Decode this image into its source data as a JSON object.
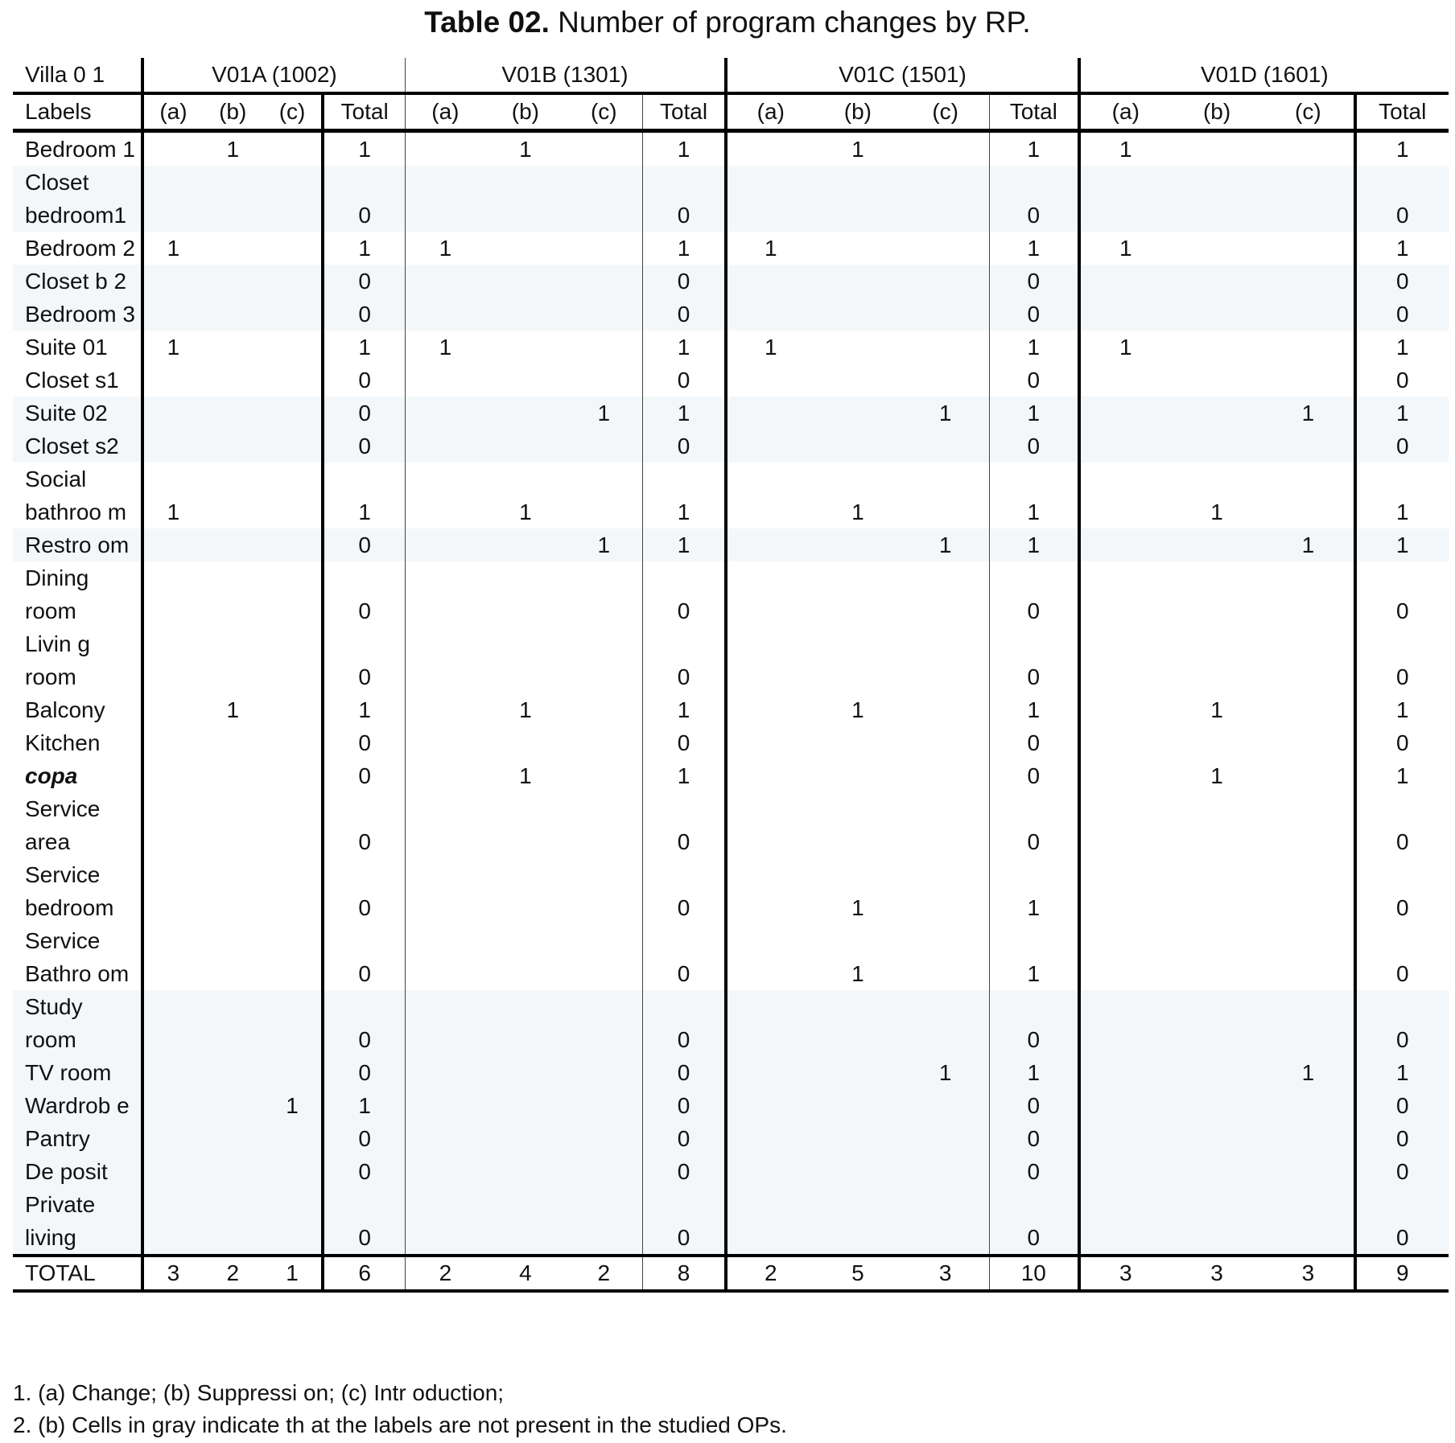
{
  "title": {
    "bold": "Table 02.",
    "rest": " Number of program changes by RP."
  },
  "header": {
    "corner": "Villa 0 1",
    "labels": "Labels",
    "groups": [
      "V01A (1002)",
      "V01B (1301)",
      "V01C (1501)",
      "V01D (1601)"
    ],
    "sub": [
      "(a)",
      "(b)",
      "(c)",
      "Total"
    ]
  },
  "rows": [
    {
      "label": "Bedroom 1",
      "shaded": false,
      "values": [
        "",
        "1",
        "",
        "1",
        "",
        "1",
        "",
        "1",
        "",
        "1",
        "",
        "1",
        "1",
        "",
        "",
        "1"
      ]
    },
    {
      "label": "Closet bedroom1",
      "shaded": true,
      "values": [
        "",
        "",
        "",
        "0",
        "",
        "",
        "",
        "0",
        "",
        "",
        "",
        "0",
        "",
        "",
        "",
        "0"
      ]
    },
    {
      "label": "Bedroom 2",
      "shaded": false,
      "values": [
        "1",
        "",
        "",
        "1",
        "1",
        "",
        "",
        "1",
        "1",
        "",
        "",
        "1",
        "1",
        "",
        "",
        "1"
      ]
    },
    {
      "label": "Closet b 2",
      "shaded": true,
      "values": [
        "",
        "",
        "",
        "0",
        "",
        "",
        "",
        "0",
        "",
        "",
        "",
        "0",
        "",
        "",
        "",
        "0"
      ]
    },
    {
      "label": "Bedroom 3",
      "shaded": true,
      "values": [
        "",
        "",
        "",
        "0",
        "",
        "",
        "",
        "0",
        "",
        "",
        "",
        "0",
        "",
        "",
        "",
        "0"
      ]
    },
    {
      "label": "Suite 01",
      "shaded": false,
      "values": [
        "1",
        "",
        "",
        "1",
        "1",
        "",
        "",
        "1",
        "1",
        "",
        "",
        "1",
        "1",
        "",
        "",
        "1"
      ]
    },
    {
      "label": "Closet s1",
      "shaded": false,
      "values": [
        "",
        "",
        "",
        "0",
        "",
        "",
        "",
        "0",
        "",
        "",
        "",
        "0",
        "",
        "",
        "",
        "0"
      ]
    },
    {
      "label": "Suite 02",
      "shaded": true,
      "values": [
        "",
        "",
        "",
        "0",
        "",
        "",
        "1",
        "1",
        "",
        "",
        "1",
        "1",
        "",
        "",
        "1",
        "1"
      ]
    },
    {
      "label": "Closet s2",
      "shaded": true,
      "values": [
        "",
        "",
        "",
        "0",
        "",
        "",
        "",
        "0",
        "",
        "",
        "",
        "0",
        "",
        "",
        "",
        "0"
      ]
    },
    {
      "label": "Social bathroo m",
      "shaded": false,
      "values": [
        "1",
        "",
        "",
        "1",
        "",
        "1",
        "",
        "1",
        "",
        "1",
        "",
        "1",
        "",
        "1",
        "",
        "1"
      ]
    },
    {
      "label": "Restro om",
      "shaded": true,
      "values": [
        "",
        "",
        "",
        "0",
        "",
        "",
        "1",
        "1",
        "",
        "",
        "1",
        "1",
        "",
        "",
        "1",
        "1"
      ]
    },
    {
      "label": "Dining room",
      "shaded": false,
      "values": [
        "",
        "",
        "",
        "0",
        "",
        "",
        "",
        "0",
        "",
        "",
        "",
        "0",
        "",
        "",
        "",
        "0"
      ]
    },
    {
      "label": "Livin g room",
      "shaded": false,
      "values": [
        "",
        "",
        "",
        "0",
        "",
        "",
        "",
        "0",
        "",
        "",
        "",
        "0",
        "",
        "",
        "",
        "0"
      ]
    },
    {
      "label": "Balcony",
      "shaded": false,
      "values": [
        "",
        "1",
        "",
        "1",
        "",
        "1",
        "",
        "1",
        "",
        "1",
        "",
        "1",
        "",
        "1",
        "",
        "1"
      ]
    },
    {
      "label": "Kitchen",
      "shaded": false,
      "values": [
        "",
        "",
        "",
        "0",
        "",
        "",
        "",
        "0",
        "",
        "",
        "",
        "0",
        "",
        "",
        "",
        "0"
      ]
    },
    {
      "label": "copa",
      "shaded": false,
      "italic": true,
      "values": [
        "",
        "",
        "",
        "0",
        "",
        "1",
        "",
        "1",
        "",
        "",
        "",
        "0",
        "",
        "1",
        "",
        "1"
      ]
    },
    {
      "label": "Service area",
      "shaded": false,
      "values": [
        "",
        "",
        "",
        "0",
        "",
        "",
        "",
        "0",
        "",
        "",
        "",
        "0",
        "",
        "",
        "",
        "0"
      ]
    },
    {
      "label": "Service bedroom",
      "shaded": false,
      "values": [
        "",
        "",
        "",
        "0",
        "",
        "",
        "",
        "0",
        "",
        "1",
        "",
        "1",
        "",
        "",
        "",
        "0"
      ]
    },
    {
      "label": "Service Bathro om",
      "shaded": false,
      "values": [
        "",
        "",
        "",
        "0",
        "",
        "",
        "",
        "0",
        "",
        "1",
        "",
        "1",
        "",
        "",
        "",
        "0"
      ]
    },
    {
      "label": "Study room",
      "shaded": true,
      "values": [
        "",
        "",
        "",
        "0",
        "",
        "",
        "",
        "0",
        "",
        "",
        "",
        "0",
        "",
        "",
        "",
        "0"
      ]
    },
    {
      "label": "TV room",
      "shaded": true,
      "values": [
        "",
        "",
        "",
        "0",
        "",
        "",
        "",
        "0",
        "",
        "",
        "1",
        "1",
        "",
        "",
        "1",
        "1"
      ]
    },
    {
      "label": "Wardrob e",
      "shaded": true,
      "values": [
        "",
        "",
        "1",
        "1",
        "",
        "",
        "",
        "0",
        "",
        "",
        "",
        "0",
        "",
        "",
        "",
        "0"
      ]
    },
    {
      "label": "Pantry",
      "shaded": true,
      "values": [
        "",
        "",
        "",
        "0",
        "",
        "",
        "",
        "0",
        "",
        "",
        "",
        "0",
        "",
        "",
        "",
        "0"
      ]
    },
    {
      "label": "De posit",
      "shaded": true,
      "values": [
        "",
        "",
        "",
        "0",
        "",
        "",
        "",
        "0",
        "",
        "",
        "",
        "0",
        "",
        "",
        "",
        "0"
      ]
    },
    {
      "label": "Private living",
      "shaded": true,
      "values": [
        "",
        "",
        "",
        "0",
        "",
        "",
        "",
        "0",
        "",
        "",
        "",
        "0",
        "",
        "",
        "",
        "0"
      ]
    }
  ],
  "total": {
    "label": "TOTAL",
    "values": [
      "3",
      "2",
      "1",
      "6",
      "2",
      "4",
      "2",
      "8",
      "2",
      "5",
      "3",
      "10",
      "3",
      "3",
      "3",
      "9"
    ]
  },
  "notes": [
    "1. (a) Change; (b) Suppressi on; (c) Intr oduction;",
    "2. (b) Cells in gray indicate th at the labels are not present in the studied OPs."
  ],
  "colors": {
    "shade": "#f3f7fa",
    "rule": "#000000"
  }
}
